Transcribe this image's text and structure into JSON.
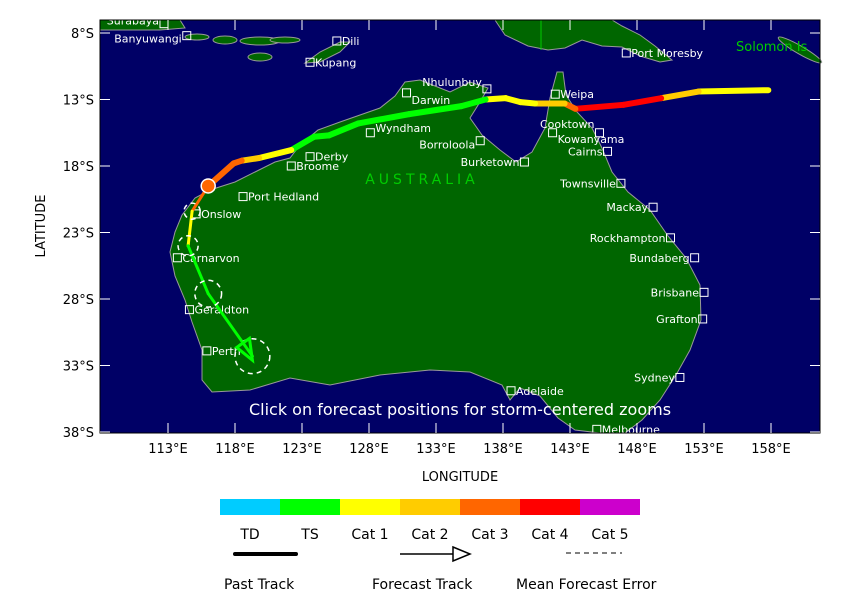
{
  "map": {
    "region_label": "AUSTRALIA",
    "solomon_label": "Solomon Is",
    "instruction": "Click on forecast positions for storm-centered zooms",
    "xlabel": "LONGITUDE",
    "ylabel": "LATITUDE",
    "lon_ticks": [
      "113°E",
      "118°E",
      "123°E",
      "128°E",
      "133°E",
      "138°E",
      "143°E",
      "148°E",
      "153°E",
      "158°E"
    ],
    "lat_ticks": [
      "8°S",
      "13°S",
      "18°S",
      "23°S",
      "28°S",
      "33°S",
      "38°S"
    ],
    "colors": {
      "ocean": "#000066",
      "land": "#006600",
      "coast": "#999999"
    },
    "cities": [
      {
        "name": "Surabaya",
        "lon": 112.7,
        "lat": -7.3,
        "label_side": "left"
      },
      {
        "name": "Banyuwangi",
        "lon": 114.4,
        "lat": -8.2,
        "label_side": "left"
      },
      {
        "name": "Dili",
        "lon": 125.6,
        "lat": -8.6,
        "label_side": "right"
      },
      {
        "name": "Kupang",
        "lon": 123.6,
        "lat": -10.2,
        "label_side": "right"
      },
      {
        "name": "Port Moresby",
        "lon": 147.2,
        "lat": -9.5,
        "label_side": "right"
      },
      {
        "name": "Nhulunbuy",
        "lon": 136.8,
        "lat": -12.2,
        "label_side": "left"
      },
      {
        "name": "Darwin",
        "lon": 130.8,
        "lat": -12.5,
        "label_side": "right"
      },
      {
        "name": "Weipa",
        "lon": 141.9,
        "lat": -12.6,
        "label_side": "right"
      },
      {
        "name": "Wyndham",
        "lon": 128.1,
        "lat": -15.5,
        "label_side": "right"
      },
      {
        "name": "Cooktown",
        "lon": 145.2,
        "lat": -15.5,
        "label_side": "left"
      },
      {
        "name": "Kowanyama",
        "lon": 141.7,
        "lat": -15.5,
        "label_side": "right"
      },
      {
        "name": "Borroloola",
        "lon": 136.3,
        "lat": -16.1,
        "label_side": "left"
      },
      {
        "name": "Cairns",
        "lon": 145.8,
        "lat": -16.9,
        "label_side": "left"
      },
      {
        "name": "Derby",
        "lon": 123.6,
        "lat": -17.3,
        "label_side": "right"
      },
      {
        "name": "Burketown",
        "lon": 139.6,
        "lat": -17.7,
        "label_side": "left"
      },
      {
        "name": "Broome",
        "lon": 122.2,
        "lat": -18.0,
        "label_side": "right"
      },
      {
        "name": "Townsville",
        "lon": 146.8,
        "lat": -19.3,
        "label_side": "left"
      },
      {
        "name": "Port Hedland",
        "lon": 118.6,
        "lat": -20.3,
        "label_side": "right"
      },
      {
        "name": "Mackay",
        "lon": 149.2,
        "lat": -21.1,
        "label_side": "left"
      },
      {
        "name": "Onslow",
        "lon": 115.1,
        "lat": -21.6,
        "label_side": "right"
      },
      {
        "name": "Rockhampton",
        "lon": 150.5,
        "lat": -23.4,
        "label_side": "left"
      },
      {
        "name": "Carnarvon",
        "lon": 113.7,
        "lat": -24.9,
        "label_side": "right"
      },
      {
        "name": "Bundaberg",
        "lon": 152.3,
        "lat": -24.9,
        "label_side": "left"
      },
      {
        "name": "Brisbane",
        "lon": 153.0,
        "lat": -27.5,
        "label_side": "left"
      },
      {
        "name": "Geraldton",
        "lon": 114.6,
        "lat": -28.8,
        "label_side": "right"
      },
      {
        "name": "Grafton",
        "lon": 152.9,
        "lat": -29.5,
        "label_side": "left"
      },
      {
        "name": "Perth",
        "lon": 115.9,
        "lat": -31.9,
        "label_side": "right"
      },
      {
        "name": "Sydney",
        "lon": 151.2,
        "lat": -33.9,
        "label_side": "left"
      },
      {
        "name": "Adelaide",
        "lon": 138.6,
        "lat": -34.9,
        "label_side": "right"
      },
      {
        "name": "Melbourne",
        "lon": 145.0,
        "lat": -37.8,
        "label_side": "right"
      }
    ],
    "past_track": [
      {
        "lon": 157.8,
        "lat": -12.3,
        "cat": "TS"
      },
      {
        "lon": 152.6,
        "lat": -12.4,
        "cat": "Cat 1"
      },
      {
        "lon": 149.8,
        "lat": -12.9,
        "cat": "Cat 2"
      },
      {
        "lon": 147.0,
        "lat": -13.4,
        "cat": "Cat 4"
      },
      {
        "lon": 143.4,
        "lat": -13.7,
        "cat": "Cat 4"
      },
      {
        "lon": 142.6,
        "lat": -13.3,
        "cat": "Cat 3"
      },
      {
        "lon": 140.4,
        "lat": -13.3,
        "cat": "Cat 2"
      },
      {
        "lon": 139.3,
        "lat": -13.2,
        "cat": "Cat 1"
      },
      {
        "lon": 138.2,
        "lat": -12.9,
        "cat": "Cat 1"
      },
      {
        "lon": 136.7,
        "lat": -13.0,
        "cat": "Cat 1"
      },
      {
        "lon": 134.9,
        "lat": -13.5,
        "cat": "TS"
      },
      {
        "lon": 131.0,
        "lat": -14.1,
        "cat": "TS"
      },
      {
        "lon": 127.2,
        "lat": -14.8,
        "cat": "TS"
      },
      {
        "lon": 125.0,
        "lat": -15.7,
        "cat": "TS"
      },
      {
        "lon": 123.9,
        "lat": -15.8,
        "cat": "TS"
      },
      {
        "lon": 122.2,
        "lat": -16.8,
        "cat": "TS"
      },
      {
        "lon": 119.8,
        "lat": -17.4,
        "cat": "Cat 1"
      },
      {
        "lon": 118.5,
        "lat": -17.6,
        "cat": "Cat 2"
      },
      {
        "lon": 117.9,
        "lat": -17.8,
        "cat": "Cat 3"
      },
      {
        "lon": 116.0,
        "lat": -19.5,
        "cat": "Cat 3"
      }
    ],
    "forecast_track": [
      {
        "lon": 116.0,
        "lat": -19.5,
        "cat": "Cat 3",
        "error_radius": 0
      },
      {
        "lon": 114.8,
        "lat": -21.4,
        "cat": "Cat 3",
        "error_radius": 0.6
      },
      {
        "lon": 114.5,
        "lat": -24.0,
        "cat": "Cat 1",
        "error_radius": 0.75
      },
      {
        "lon": 116.0,
        "lat": -27.6,
        "cat": "TS",
        "error_radius": 1.0
      },
      {
        "lon": 119.3,
        "lat": -32.3,
        "cat": "TS",
        "error_radius": 1.3
      }
    ]
  },
  "legend": {
    "categories": [
      {
        "label": "TD",
        "color": "#00ccff"
      },
      {
        "label": "TS",
        "color": "#00ff00"
      },
      {
        "label": "Cat 1",
        "color": "#ffff00"
      },
      {
        "label": "Cat 2",
        "color": "#ffcc00"
      },
      {
        "label": "Cat 3",
        "color": "#ff6600"
      },
      {
        "label": "Cat 4",
        "color": "#ff0000"
      },
      {
        "label": "Cat 5",
        "color": "#cc00cc"
      }
    ],
    "past_track": "Past Track",
    "forecast_track": "Forecast Track",
    "mean_error": "Mean Forecast Error"
  }
}
